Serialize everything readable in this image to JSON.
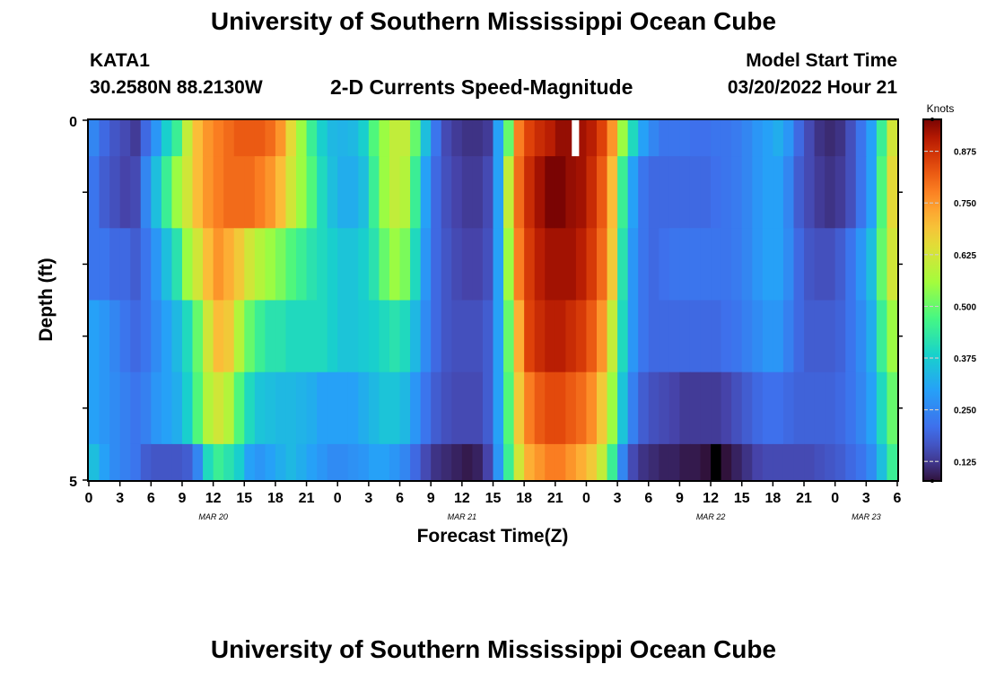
{
  "page": {
    "title": "University of Southern Mississippi Ocean Cube",
    "station_id": "KATA1",
    "station_coords": "30.2580N  88.2130W",
    "plot_name": "2-D Currents Speed-Magnitude",
    "model_start_label": "Model Start Time",
    "model_start_value": "03/20/2022 Hour 21",
    "footer_title": "University of Southern Mississippi Ocean Cube"
  },
  "chart_data": {
    "type": "heatmap",
    "title": "2-D Currents Speed-Magnitude",
    "xlabel": "Forecast Time(Z)",
    "ylabel": "Depth (ft)",
    "x_unit": "hour index from MAR 20 00Z",
    "x_ticks": [
      {
        "h": 0,
        "label": "0"
      },
      {
        "h": 3,
        "label": "3"
      },
      {
        "h": 6,
        "label": "6"
      },
      {
        "h": 9,
        "label": "9"
      },
      {
        "h": 12,
        "label": "12"
      },
      {
        "h": 15,
        "label": "15"
      },
      {
        "h": 18,
        "label": "18"
      },
      {
        "h": 21,
        "label": "21"
      },
      {
        "h": 24,
        "label": "0"
      },
      {
        "h": 27,
        "label": "3"
      },
      {
        "h": 30,
        "label": "6"
      },
      {
        "h": 33,
        "label": "9"
      },
      {
        "h": 36,
        "label": "12"
      },
      {
        "h": 39,
        "label": "15"
      },
      {
        "h": 42,
        "label": "18"
      },
      {
        "h": 45,
        "label": "21"
      },
      {
        "h": 48,
        "label": "0"
      },
      {
        "h": 51,
        "label": "3"
      },
      {
        "h": 54,
        "label": "6"
      },
      {
        "h": 57,
        "label": "9"
      },
      {
        "h": 60,
        "label": "12"
      },
      {
        "h": 63,
        "label": "15"
      },
      {
        "h": 66,
        "label": "18"
      },
      {
        "h": 69,
        "label": "21"
      },
      {
        "h": 72,
        "label": "0"
      },
      {
        "h": 75,
        "label": "3"
      },
      {
        "h": 78,
        "label": "6"
      }
    ],
    "date_labels": [
      {
        "h": 12,
        "label": "MAR 20"
      },
      {
        "h": 36,
        "label": "MAR 21"
      },
      {
        "h": 60,
        "label": "MAR 22"
      },
      {
        "h": 75,
        "label": "MAR 23"
      }
    ],
    "y_ticks": [
      {
        "depth": 0,
        "label": "0"
      },
      {
        "depth": 5,
        "label": "5"
      }
    ],
    "depth_range": [
      0,
      5
    ],
    "x_range": [
      0,
      78
    ],
    "colorbar": {
      "title": "Knots",
      "range": [
        0.08,
        0.95
      ],
      "ticks": [
        0.125,
        0.25,
        0.375,
        0.5,
        0.625,
        0.75,
        0.875
      ],
      "tick_labels": [
        "0.125",
        "0.250",
        "0.375",
        "0.500",
        "0.625",
        "0.750",
        "0.875"
      ]
    },
    "row_depths": [
      {
        "top": 0.0,
        "bottom": 0.5
      },
      {
        "top": 0.5,
        "bottom": 1.5
      },
      {
        "top": 1.5,
        "bottom": 2.5
      },
      {
        "top": 2.5,
        "bottom": 3.5
      },
      {
        "top": 3.5,
        "bottom": 4.5
      },
      {
        "top": 4.5,
        "bottom": 5.0
      }
    ],
    "series": [
      {
        "hours": [
          0,
          1,
          2,
          3,
          4,
          5,
          6,
          7,
          8,
          9,
          10,
          11,
          12,
          13,
          14,
          15,
          16,
          17,
          18,
          19,
          20,
          21,
          22,
          23,
          24,
          25,
          26,
          27,
          28,
          29,
          30,
          31,
          32,
          33,
          34,
          35,
          36,
          37,
          38,
          39,
          40,
          41,
          42,
          43,
          44,
          45,
          46,
          47,
          48,
          49,
          50,
          51,
          52,
          53,
          54,
          55,
          56,
          57,
          58,
          59,
          60,
          61,
          62,
          63,
          64,
          65,
          66,
          67,
          68,
          69,
          70,
          71,
          72,
          73,
          74,
          75,
          76,
          77
        ],
        "values": [
          0.25,
          0.2,
          0.17,
          0.15,
          0.13,
          0.2,
          0.28,
          0.38,
          0.45,
          0.6,
          0.7,
          0.75,
          0.78,
          0.8,
          0.82,
          0.82,
          0.82,
          0.8,
          0.75,
          0.65,
          0.55,
          0.45,
          0.38,
          0.34,
          0.33,
          0.34,
          0.38,
          0.48,
          0.55,
          0.6,
          0.6,
          0.5,
          0.35,
          0.22,
          0.15,
          0.13,
          0.12,
          0.12,
          0.13,
          0.3,
          0.5,
          0.78,
          0.85,
          0.88,
          0.9,
          0.93,
          0.93,
          0.92,
          0.9,
          0.85,
          0.75,
          0.55,
          0.4,
          0.3,
          0.25,
          0.22,
          0.22,
          0.22,
          0.21,
          0.21,
          0.22,
          0.22,
          0.23,
          0.25,
          0.28,
          0.3,
          0.32,
          0.28,
          0.2,
          0.15,
          0.12,
          0.11,
          0.12,
          0.16,
          0.22,
          0.3,
          0.45,
          0.62
        ]
      },
      {
        "hours": [
          0,
          1,
          2,
          3,
          4,
          5,
          6,
          7,
          8,
          9,
          10,
          11,
          12,
          13,
          14,
          15,
          16,
          17,
          18,
          19,
          20,
          21,
          22,
          23,
          24,
          25,
          26,
          27,
          28,
          29,
          30,
          31,
          32,
          33,
          34,
          35,
          36,
          37,
          38,
          39,
          40,
          41,
          42,
          43,
          44,
          45,
          46,
          47,
          48,
          49,
          50,
          51,
          52,
          53,
          54,
          55,
          56,
          57,
          58,
          59,
          60,
          61,
          62,
          63,
          64,
          65,
          66,
          67,
          68,
          69,
          70,
          71,
          72,
          73,
          74,
          75,
          76,
          77
        ],
        "values": [
          0.22,
          0.18,
          0.16,
          0.14,
          0.15,
          0.25,
          0.35,
          0.45,
          0.55,
          0.62,
          0.7,
          0.75,
          0.78,
          0.8,
          0.8,
          0.8,
          0.78,
          0.75,
          0.7,
          0.62,
          0.55,
          0.48,
          0.4,
          0.35,
          0.32,
          0.32,
          0.35,
          0.45,
          0.55,
          0.6,
          0.58,
          0.45,
          0.3,
          0.2,
          0.16,
          0.14,
          0.13,
          0.13,
          0.15,
          0.3,
          0.6,
          0.8,
          0.88,
          0.92,
          0.95,
          0.95,
          0.93,
          0.92,
          0.88,
          0.82,
          0.7,
          0.45,
          0.3,
          0.22,
          0.2,
          0.2,
          0.2,
          0.2,
          0.2,
          0.2,
          0.21,
          0.22,
          0.23,
          0.25,
          0.28,
          0.3,
          0.3,
          0.25,
          0.18,
          0.15,
          0.13,
          0.12,
          0.13,
          0.16,
          0.22,
          0.3,
          0.48,
          0.65
        ]
      },
      {
        "hours": [
          0,
          1,
          2,
          3,
          4,
          5,
          6,
          7,
          8,
          9,
          10,
          11,
          12,
          13,
          14,
          15,
          16,
          17,
          18,
          19,
          20,
          21,
          22,
          23,
          24,
          25,
          26,
          27,
          28,
          29,
          30,
          31,
          32,
          33,
          34,
          35,
          36,
          37,
          38,
          39,
          40,
          41,
          42,
          43,
          44,
          45,
          46,
          47,
          48,
          49,
          50,
          51,
          52,
          53,
          54,
          55,
          56,
          57,
          58,
          59,
          60,
          61,
          62,
          63,
          64,
          65,
          66,
          67,
          68,
          69,
          70,
          71,
          72,
          73,
          74,
          75,
          76,
          77
        ],
        "values": [
          0.22,
          0.22,
          0.2,
          0.2,
          0.18,
          0.22,
          0.28,
          0.35,
          0.42,
          0.55,
          0.62,
          0.7,
          0.75,
          0.72,
          0.68,
          0.62,
          0.58,
          0.55,
          0.52,
          0.48,
          0.45,
          0.42,
          0.4,
          0.38,
          0.36,
          0.36,
          0.38,
          0.42,
          0.5,
          0.55,
          0.52,
          0.4,
          0.28,
          0.2,
          0.17,
          0.15,
          0.14,
          0.14,
          0.16,
          0.3,
          0.55,
          0.78,
          0.86,
          0.9,
          0.92,
          0.92,
          0.92,
          0.9,
          0.86,
          0.8,
          0.68,
          0.42,
          0.28,
          0.22,
          0.2,
          0.21,
          0.22,
          0.22,
          0.22,
          0.22,
          0.22,
          0.22,
          0.23,
          0.25,
          0.28,
          0.3,
          0.3,
          0.26,
          0.2,
          0.17,
          0.16,
          0.16,
          0.18,
          0.22,
          0.28,
          0.35,
          0.5,
          0.62
        ]
      },
      {
        "hours": [
          0,
          1,
          2,
          3,
          4,
          5,
          6,
          7,
          8,
          9,
          10,
          11,
          12,
          13,
          14,
          15,
          16,
          17,
          18,
          19,
          20,
          21,
          22,
          23,
          24,
          25,
          26,
          27,
          28,
          29,
          30,
          31,
          32,
          33,
          34,
          35,
          36,
          37,
          38,
          39,
          40,
          41,
          42,
          43,
          44,
          45,
          46,
          47,
          48,
          49,
          50,
          51,
          52,
          53,
          54,
          55,
          56,
          57,
          58,
          59,
          60,
          61,
          62,
          63,
          64,
          65,
          66,
          67,
          68,
          69,
          70,
          71,
          72,
          73,
          74,
          75,
          76,
          77
        ],
        "values": [
          0.3,
          0.28,
          0.25,
          0.22,
          0.2,
          0.22,
          0.26,
          0.3,
          0.34,
          0.4,
          0.5,
          0.62,
          0.7,
          0.68,
          0.58,
          0.5,
          0.45,
          0.42,
          0.42,
          0.4,
          0.4,
          0.4,
          0.4,
          0.38,
          0.36,
          0.36,
          0.37,
          0.38,
          0.4,
          0.42,
          0.4,
          0.34,
          0.26,
          0.2,
          0.17,
          0.16,
          0.16,
          0.16,
          0.18,
          0.3,
          0.5,
          0.72,
          0.85,
          0.88,
          0.9,
          0.9,
          0.88,
          0.86,
          0.82,
          0.75,
          0.6,
          0.4,
          0.28,
          0.22,
          0.2,
          0.2,
          0.2,
          0.2,
          0.2,
          0.2,
          0.2,
          0.21,
          0.22,
          0.24,
          0.26,
          0.28,
          0.28,
          0.24,
          0.2,
          0.18,
          0.18,
          0.18,
          0.19,
          0.22,
          0.26,
          0.32,
          0.45,
          0.55
        ]
      },
      {
        "hours": [
          0,
          1,
          2,
          3,
          4,
          5,
          6,
          7,
          8,
          9,
          10,
          11,
          12,
          13,
          14,
          15,
          16,
          17,
          18,
          19,
          20,
          21,
          22,
          23,
          24,
          25,
          26,
          27,
          28,
          29,
          30,
          31,
          32,
          33,
          34,
          35,
          36,
          37,
          38,
          39,
          40,
          41,
          42,
          43,
          44,
          45,
          46,
          47,
          48,
          49,
          50,
          51,
          52,
          53,
          54,
          55,
          56,
          57,
          58,
          59,
          60,
          61,
          62,
          63,
          64,
          65,
          66,
          67,
          68,
          69,
          70,
          71,
          72,
          73,
          74,
          75,
          76,
          77
        ],
        "values": [
          0.3,
          0.28,
          0.26,
          0.24,
          0.22,
          0.24,
          0.28,
          0.3,
          0.32,
          0.38,
          0.48,
          0.58,
          0.62,
          0.58,
          0.48,
          0.4,
          0.36,
          0.35,
          0.34,
          0.34,
          0.33,
          0.32,
          0.3,
          0.3,
          0.3,
          0.3,
          0.32,
          0.34,
          0.36,
          0.36,
          0.34,
          0.28,
          0.22,
          0.18,
          0.16,
          0.15,
          0.15,
          0.15,
          0.18,
          0.3,
          0.48,
          0.68,
          0.78,
          0.82,
          0.84,
          0.84,
          0.82,
          0.8,
          0.76,
          0.68,
          0.55,
          0.36,
          0.24,
          0.18,
          0.16,
          0.15,
          0.14,
          0.13,
          0.13,
          0.13,
          0.13,
          0.14,
          0.16,
          0.18,
          0.2,
          0.21,
          0.21,
          0.2,
          0.19,
          0.19,
          0.19,
          0.19,
          0.2,
          0.22,
          0.25,
          0.3,
          0.4,
          0.5
        ]
      },
      {
        "hours": [
          0,
          1,
          2,
          3,
          4,
          5,
          6,
          7,
          8,
          9,
          10,
          11,
          12,
          13,
          14,
          15,
          16,
          17,
          18,
          19,
          20,
          21,
          22,
          23,
          24,
          25,
          26,
          27,
          28,
          29,
          30,
          31,
          32,
          33,
          34,
          35,
          36,
          37,
          38,
          39,
          40,
          41,
          42,
          43,
          44,
          45,
          46,
          47,
          48,
          49,
          50,
          51,
          52,
          53,
          54,
          55,
          56,
          57,
          58,
          59,
          60,
          61,
          62,
          63,
          64,
          65,
          66,
          67,
          68,
          69,
          70,
          71,
          72,
          73,
          74,
          75,
          76,
          77
        ],
        "values": [
          0.35,
          0.3,
          0.26,
          0.24,
          0.22,
          0.18,
          0.17,
          0.17,
          0.17,
          0.18,
          0.25,
          0.4,
          0.45,
          0.42,
          0.38,
          0.3,
          0.28,
          0.3,
          0.32,
          0.34,
          0.32,
          0.3,
          0.28,
          0.26,
          0.26,
          0.27,
          0.28,
          0.3,
          0.3,
          0.28,
          0.25,
          0.2,
          0.15,
          0.12,
          0.11,
          0.1,
          0.09,
          0.1,
          0.14,
          0.28,
          0.45,
          0.62,
          0.72,
          0.75,
          0.78,
          0.78,
          0.75,
          0.72,
          0.68,
          0.6,
          0.45,
          0.25,
          0.15,
          0.12,
          0.11,
          0.1,
          0.1,
          0.09,
          0.09,
          0.06,
          0.03,
          0.08,
          0.1,
          0.12,
          0.14,
          0.15,
          0.15,
          0.15,
          0.15,
          0.15,
          0.16,
          0.17,
          0.18,
          0.2,
          0.22,
          0.26,
          0.35,
          0.45
        ]
      }
    ],
    "missing_cells": [
      {
        "row": 0,
        "hour": 46.6,
        "width_h": 0.7
      }
    ]
  }
}
